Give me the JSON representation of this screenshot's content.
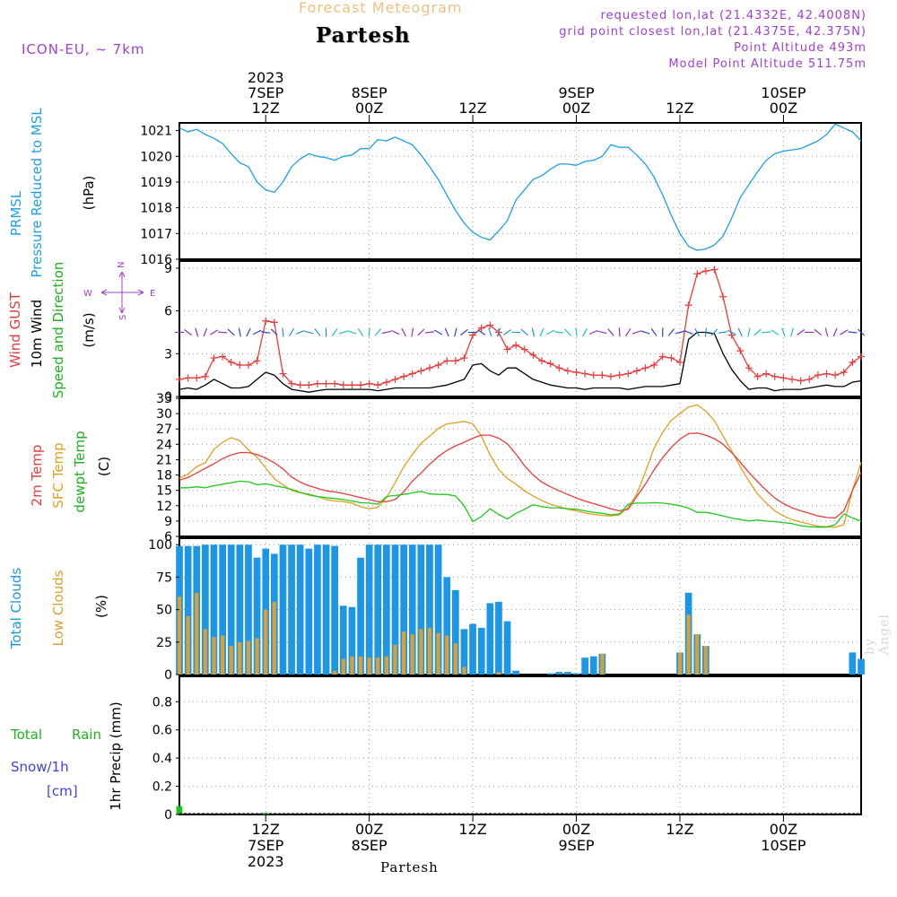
{
  "header": {
    "title": "Forecast Meteogram",
    "location": "Partesh",
    "model": "ICON-EU, ~ 7km",
    "requested": "requested lon,lat (21.4332E, 42.4008N)",
    "gridpoint": "grid point closest lon,lat (21.4375E, 42.375N)",
    "point_alt": "Point Altitude 493m",
    "model_alt": "Model Point Altitude 511.75m",
    "footer_location": "Partesh",
    "watermark": "by Angel"
  },
  "colors": {
    "pressure": "#1ea0e6",
    "gust": "#e83c3c",
    "wind": "#000000",
    "temp2m": "#e83c3c",
    "sfc": "#e0a020",
    "dewpt": "#20c820",
    "total_clouds": "#1e96e6",
    "low_clouds": "#dca032",
    "rain": "#20c020",
    "snow": "#4040e0",
    "header_purple": "#a040d0",
    "title_orange": "#f0c080"
  },
  "time_axis": {
    "top_ticks": [
      {
        "hour": 12,
        "l1": "2023",
        "l2": "7SEP",
        "l3": "12Z"
      },
      {
        "hour": 24,
        "l1": "",
        "l2": "8SEP",
        "l3": "00Z"
      },
      {
        "hour": 36,
        "l1": "",
        "l2": "",
        "l3": "12Z"
      },
      {
        "hour": 48,
        "l1": "",
        "l2": "9SEP",
        "l3": "00Z"
      },
      {
        "hour": 60,
        "l1": "",
        "l2": "",
        "l3": "12Z"
      },
      {
        "hour": 72,
        "l1": "",
        "l2": "10SEP",
        "l3": "00Z"
      }
    ],
    "bottom_ticks": [
      {
        "hour": 12,
        "l1": "12Z",
        "l2": "7SEP",
        "l3": "2023"
      },
      {
        "hour": 24,
        "l1": "00Z",
        "l2": "8SEP",
        "l3": ""
      },
      {
        "hour": 36,
        "l1": "12Z",
        "l2": "",
        "l3": ""
      },
      {
        "hour": 48,
        "l1": "00Z",
        "l2": "9SEP",
        "l3": ""
      },
      {
        "hour": 60,
        "l1": "12Z",
        "l2": "",
        "l3": ""
      },
      {
        "hour": 72,
        "l1": "00Z",
        "l2": "10SEP",
        "l3": ""
      }
    ]
  },
  "labels": {
    "p1_a": "PRMSL",
    "p1_b": "Pressure Reduced to MSL",
    "p1_unit": "(hPa)",
    "p2_a": "Wind GUST",
    "p2_b": "10m Wind",
    "p2_c": "Speed and Direction",
    "p2_unit": "(m/s)",
    "compass_n": "N",
    "compass_s": "S",
    "compass_w": "W",
    "compass_e": "E",
    "p3_a": "2m Temp",
    "p3_b": "SFC Temp",
    "p3_c": "dewpt Temp",
    "p3_unit": "(C)",
    "p4_a": "Total Clouds",
    "p4_b": "Low Clouds",
    "p4_unit": "(%)",
    "p5_a": "Total",
    "p5_b": "Rain",
    "p5_c": "Snow/1h",
    "p5_d": "[cm]",
    "p5_unit": "1hr Precip (mm)"
  },
  "chart_data": [
    {
      "type": "line",
      "title": "PRMSL Pressure Reduced to MSL",
      "ylabel": "(hPa)",
      "x_hours": [
        0,
        1,
        2,
        3,
        4,
        5,
        6,
        7,
        8,
        9,
        10,
        11,
        12,
        13,
        14,
        15,
        16,
        17,
        18,
        19,
        20,
        21,
        22,
        23,
        24,
        25,
        26,
        27,
        28,
        29,
        30,
        31,
        32,
        33,
        34,
        35,
        36,
        37,
        38,
        39,
        40,
        41,
        42,
        43,
        44,
        45,
        46,
        47,
        48,
        49,
        50,
        51,
        52,
        53,
        54,
        55,
        56,
        57,
        58,
        59,
        60,
        61,
        62,
        63,
        64,
        65,
        66,
        67,
        68,
        69,
        70,
        71,
        72,
        73,
        74,
        75,
        76,
        77,
        78,
        79
      ],
      "pressure": [
        1021.1,
        1020.95,
        1021.05,
        1020.85,
        1020.7,
        1020.5,
        1020.1,
        1019.75,
        1019.6,
        1019.0,
        1018.7,
        1018.6,
        1019.0,
        1019.6,
        1019.9,
        1020.1,
        1020.0,
        1019.95,
        1019.85,
        1020.0,
        1020.05,
        1020.3,
        1020.3,
        1020.65,
        1020.6,
        1020.75,
        1020.6,
        1020.45,
        1020.05,
        1019.6,
        1019.1,
        1018.5,
        1017.9,
        1017.4,
        1017.05,
        1016.85,
        1016.75,
        1017.1,
        1017.5,
        1018.3,
        1018.7,
        1019.1,
        1019.25,
        1019.5,
        1019.7,
        1019.7,
        1019.65,
        1019.8,
        1019.85,
        1020.0,
        1020.45,
        1020.35,
        1020.35,
        1020.05,
        1019.7,
        1019.2,
        1018.5,
        1017.7,
        1017.0,
        1016.5,
        1016.35,
        1016.4,
        1016.55,
        1016.9,
        1017.6,
        1018.4,
        1018.9,
        1019.4,
        1019.85,
        1020.1,
        1020.2,
        1020.25,
        1020.3,
        1020.45,
        1020.6,
        1020.85,
        1021.25,
        1021.1,
        1020.95,
        1020.6
      ],
      "ylim": [
        1016,
        1021.3
      ],
      "y_ticks": [
        1016,
        1017,
        1018,
        1019,
        1020,
        1021
      ]
    },
    {
      "type": "line",
      "title": "Wind GUST / 10m Wind Speed and Direction",
      "ylabel": "(m/s)",
      "gust": [
        1.2,
        1.3,
        1.3,
        1.4,
        2.7,
        2.8,
        2.4,
        2.2,
        2.2,
        2.5,
        5.3,
        5.2,
        1.6,
        0.9,
        0.8,
        0.8,
        0.9,
        0.9,
        0.9,
        0.8,
        0.8,
        0.8,
        0.9,
        0.8,
        1.0,
        1.2,
        1.4,
        1.6,
        1.8,
        2.0,
        2.2,
        2.5,
        2.5,
        2.7,
        4.3,
        4.8,
        5.0,
        4.5,
        3.3,
        3.6,
        3.3,
        2.9,
        2.5,
        2.3,
        2.0,
        1.8,
        1.7,
        1.6,
        1.5,
        1.5,
        1.4,
        1.5,
        1.6,
        1.8,
        2.0,
        2.2,
        2.8,
        2.7,
        2.4,
        6.4,
        8.6,
        8.8,
        8.9,
        7.0,
        4.3,
        3.2,
        2.0,
        1.4,
        1.6,
        1.4,
        1.3,
        1.2,
        1.1,
        1.2,
        1.5,
        1.6,
        1.5,
        1.7,
        2.4,
        2.8
      ],
      "wind": [
        0.5,
        0.6,
        0.5,
        0.8,
        1.2,
        0.9,
        0.6,
        0.6,
        0.7,
        1.2,
        1.7,
        1.5,
        0.9,
        0.5,
        0.4,
        0.3,
        0.4,
        0.5,
        0.5,
        0.5,
        0.5,
        0.5,
        0.5,
        0.4,
        0.5,
        0.6,
        0.6,
        0.6,
        0.6,
        0.6,
        0.7,
        0.8,
        1.0,
        1.2,
        2.2,
        2.3,
        1.8,
        1.5,
        2.0,
        2.0,
        1.6,
        1.2,
        1.0,
        0.8,
        0.7,
        0.6,
        0.6,
        0.5,
        0.6,
        0.6,
        0.6,
        0.6,
        0.5,
        0.6,
        0.7,
        0.7,
        0.7,
        0.8,
        0.9,
        4.0,
        4.5,
        4.5,
        4.4,
        3.0,
        1.9,
        1.1,
        0.5,
        0.6,
        0.6,
        0.4,
        0.5,
        0.5,
        0.5,
        0.6,
        0.7,
        0.8,
        0.7,
        0.7,
        1.0,
        1.1
      ],
      "ylim": [
        0,
        9.5
      ],
      "y_ticks": [
        0,
        3,
        6,
        9
      ]
    },
    {
      "type": "line",
      "title": "2m Temp / SFC Temp / dewpt Temp",
      "ylabel": "(C)",
      "temp2m": [
        17.0,
        17.5,
        18.4,
        19.3,
        20.2,
        21.2,
        21.9,
        22.4,
        22.4,
        22.0,
        21.3,
        20.4,
        19.2,
        17.6,
        16.6,
        15.9,
        15.4,
        14.9,
        14.7,
        14.4,
        14.0,
        13.6,
        13.2,
        12.8,
        12.8,
        13.2,
        14.7,
        16.8,
        18.4,
        20.1,
        21.6,
        22.8,
        23.7,
        24.4,
        25.2,
        25.8,
        25.8,
        25.2,
        24.1,
        22.1,
        19.8,
        18.0,
        16.6,
        15.7,
        14.9,
        14.2,
        13.5,
        12.9,
        12.4,
        11.9,
        11.4,
        11.0,
        11.3,
        13.8,
        16.2,
        19.0,
        21.4,
        23.4,
        25.0,
        26.1,
        26.2,
        25.8,
        25.1,
        24.0,
        22.4,
        20.5,
        18.5,
        16.7,
        15.0,
        13.5,
        12.4,
        11.6,
        11.0,
        10.5,
        10.0,
        9.7,
        9.6,
        11.0,
        15.0,
        18.5
      ],
      "sfc": [
        17.4,
        18.2,
        19.6,
        20.4,
        23.0,
        24.4,
        25.3,
        24.7,
        22.9,
        21.5,
        19.4,
        17.3,
        16.1,
        15.0,
        14.5,
        14.3,
        13.8,
        13.2,
        12.9,
        12.8,
        12.5,
        11.8,
        11.4,
        11.7,
        13.6,
        16.5,
        19.6,
        22.0,
        24.2,
        25.6,
        27.1,
        28.0,
        28.2,
        28.5,
        28.0,
        25.6,
        21.9,
        19.1,
        17.3,
        16.2,
        14.9,
        13.9,
        13.0,
        12.3,
        11.8,
        11.3,
        11.0,
        10.6,
        10.3,
        10.1,
        10.0,
        10.2,
        11.7,
        14.3,
        18.6,
        23.2,
        26.3,
        28.7,
        30.0,
        31.3,
        31.7,
        30.5,
        28.6,
        25.6,
        22.7,
        19.6,
        16.8,
        14.3,
        12.5,
        11.0,
        10.0,
        9.3,
        8.8,
        8.4,
        8.0,
        7.9,
        7.8,
        8.3,
        15.0,
        20.5
      ],
      "dewpt": [
        15.5,
        15.5,
        15.7,
        15.5,
        15.9,
        16.2,
        16.5,
        16.8,
        16.7,
        16.1,
        16.3,
        15.9,
        15.6,
        15.2,
        14.6,
        14.1,
        13.8,
        13.6,
        13.4,
        13.2,
        12.9,
        12.6,
        12.5,
        12.3,
        13.8,
        14.0,
        14.2,
        14.5,
        14.8,
        14.3,
        14.2,
        14.2,
        13.9,
        12.0,
        8.9,
        9.9,
        11.4,
        10.3,
        9.4,
        10.5,
        11.3,
        12.2,
        11.8,
        11.6,
        11.6,
        11.4,
        11.3,
        11.0,
        10.7,
        10.5,
        10.2,
        10.4,
        12.3,
        12.5,
        12.5,
        12.6,
        12.5,
        12.3,
        12.0,
        11.5,
        10.7,
        10.7,
        10.4,
        10.0,
        9.6,
        9.3,
        9.0,
        9.2,
        9.0,
        8.9,
        8.7,
        8.5,
        8.1,
        7.9,
        7.8,
        7.8,
        8.3,
        10.4,
        9.6,
        9.0
      ],
      "ylim": [
        6,
        33
      ],
      "y_ticks": [
        6,
        9,
        12,
        15,
        18,
        21,
        24,
        27,
        30,
        33
      ]
    },
    {
      "type": "bar",
      "title": "Total Clouds / Low Clouds",
      "ylabel": "(%)",
      "total": [
        99,
        99,
        99,
        100,
        100,
        100,
        100,
        100,
        100,
        90,
        97,
        93,
        100,
        100,
        100,
        97,
        100,
        100,
        99,
        53,
        52,
        90,
        100,
        100,
        100,
        100,
        100,
        100,
        100,
        100,
        100,
        75,
        65,
        35,
        39,
        36,
        55,
        56,
        41,
        3,
        0,
        0,
        0,
        1,
        2,
        2,
        1,
        13,
        14,
        16,
        0,
        0,
        0,
        0,
        0,
        0,
        0,
        0,
        17,
        63,
        31,
        22,
        0,
        0,
        0,
        0,
        0,
        0,
        0,
        0,
        0,
        0,
        0,
        0,
        0,
        0,
        0,
        0,
        17,
        12
      ],
      "low": [
        60,
        45,
        63,
        35,
        29,
        30,
        22,
        25,
        26,
        28,
        50,
        56,
        0,
        0,
        0,
        0,
        0,
        0,
        3,
        12,
        14,
        14,
        13,
        13,
        14,
        23,
        33,
        31,
        35,
        36,
        32,
        30,
        24,
        6,
        0,
        0,
        0,
        2,
        0,
        0,
        0,
        0,
        0,
        0,
        0,
        0,
        0,
        0,
        0,
        16,
        0,
        0,
        0,
        0,
        0,
        0,
        0,
        0,
        17,
        46,
        31,
        22,
        0,
        0,
        0,
        0,
        0,
        0,
        0,
        0,
        0,
        0,
        0,
        0,
        0,
        0,
        0,
        0,
        0,
        0
      ],
      "ylim": [
        0,
        105
      ],
      "y_ticks": [
        0,
        25,
        50,
        75,
        100
      ]
    },
    {
      "type": "bar",
      "title": "Total Rain / Snow 1hr Precip",
      "ylabel": "1hr Precip (mm)",
      "rain": [
        0.06,
        0,
        0,
        0,
        0,
        0,
        0,
        0,
        0,
        0,
        0.01,
        0,
        0,
        0,
        0,
        0,
        0,
        0,
        0,
        0,
        0,
        0,
        0,
        0,
        0,
        0,
        0,
        0,
        0,
        0,
        0,
        0,
        0,
        0,
        0,
        0,
        0,
        0,
        0,
        0,
        0,
        0,
        0,
        0,
        0,
        0,
        0,
        0,
        0,
        0,
        0,
        0,
        0,
        0,
        0,
        0,
        0,
        0,
        0,
        0,
        0,
        0,
        0,
        0,
        0,
        0,
        0,
        0,
        0,
        0,
        0,
        0,
        0,
        0,
        0,
        0,
        0,
        0,
        0,
        0
      ],
      "ylim": [
        0,
        0.98
      ],
      "y_ticks": [
        0,
        0.2,
        0.4,
        0.6,
        0.8
      ]
    }
  ]
}
